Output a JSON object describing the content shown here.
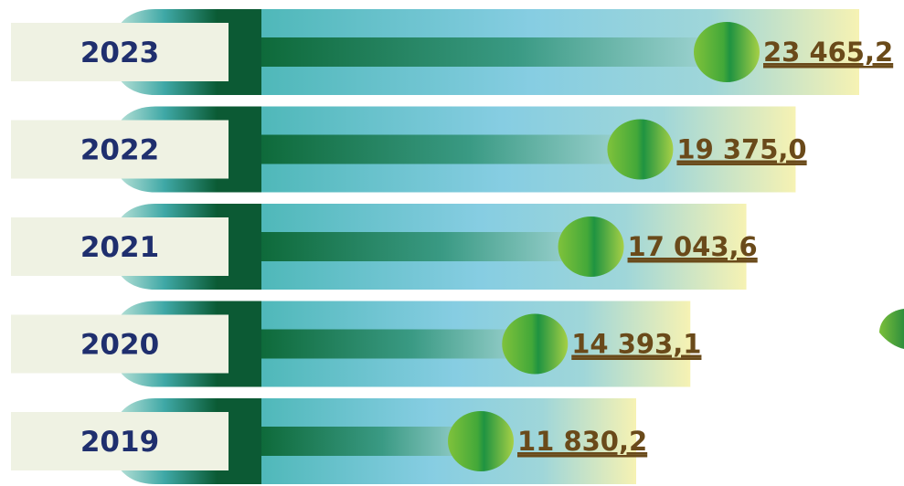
{
  "chart_data": {
    "type": "bar",
    "orientation": "horizontal",
    "categories": [
      "2023",
      "2022",
      "2021",
      "2020",
      "2019"
    ],
    "values": [
      23465.2,
      19375.0,
      17043.6,
      14393.1,
      11830.2
    ],
    "value_labels": [
      "23 465,2",
      "19 375,0",
      "17 043,6",
      "14 393,1",
      "11 830,2"
    ],
    "title": "",
    "xlabel": "",
    "ylabel": "",
    "legend": false,
    "grid": false
  },
  "colors": {
    "year_text": "#1f2f6e",
    "value_text": "#6a4a1a",
    "label_box": "#eff2e3",
    "stem_dark": "#0c5a34",
    "band_teal": "#5fc0c4",
    "band_blue": "#88cce6",
    "band_cream": "#f4f1b4",
    "marker_light": "#9ccf45",
    "marker_dark": "#239a3c"
  }
}
